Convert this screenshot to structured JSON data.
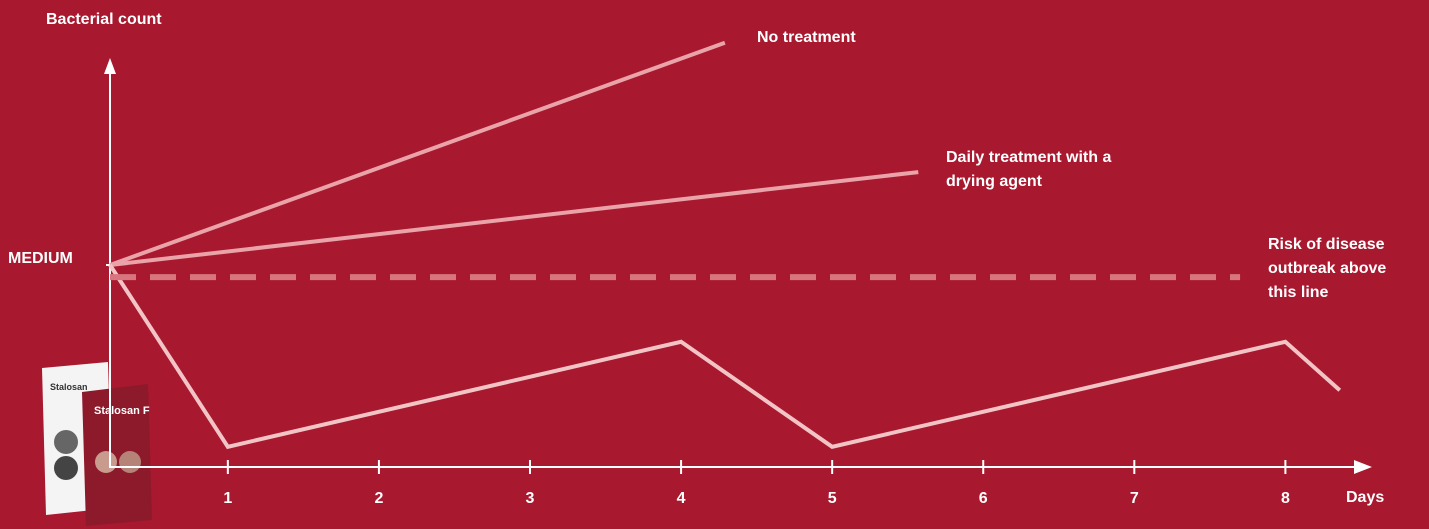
{
  "chart_data": {
    "type": "line",
    "y_label": "Bacterial count",
    "x_label": "Days",
    "xlim": [
      0.22,
      8.56
    ],
    "xticks": [
      1,
      2,
      3,
      4,
      5,
      6,
      7,
      8
    ],
    "ylim": [
      0,
      100
    ],
    "yticks": [
      {
        "value": 50,
        "label": "MEDIUM"
      }
    ],
    "series": [
      {
        "name": "No treatment",
        "color": "#e9a3a9",
        "x": [
          0.22,
          4.29
        ],
        "values": [
          50,
          105
        ]
      },
      {
        "name": "Daily treatment with a drying agent",
        "color": "#e9a3a9",
        "x": [
          0.22,
          5.57
        ],
        "values": [
          50,
          73
        ]
      },
      {
        "color": "#f2c4c6",
        "x": [
          0.22,
          1,
          4,
          5,
          8,
          8.36
        ],
        "values": [
          50,
          5,
          31,
          5,
          31,
          19
        ]
      },
      {
        "name": "Risk of disease outbreak above this line",
        "color": "#d8767f",
        "dashed": true,
        "x": [
          0.22,
          7.7
        ],
        "values": [
          47,
          47
        ]
      }
    ],
    "image_texts": [
      "Stalosan F",
      "Stalosan"
    ]
  }
}
